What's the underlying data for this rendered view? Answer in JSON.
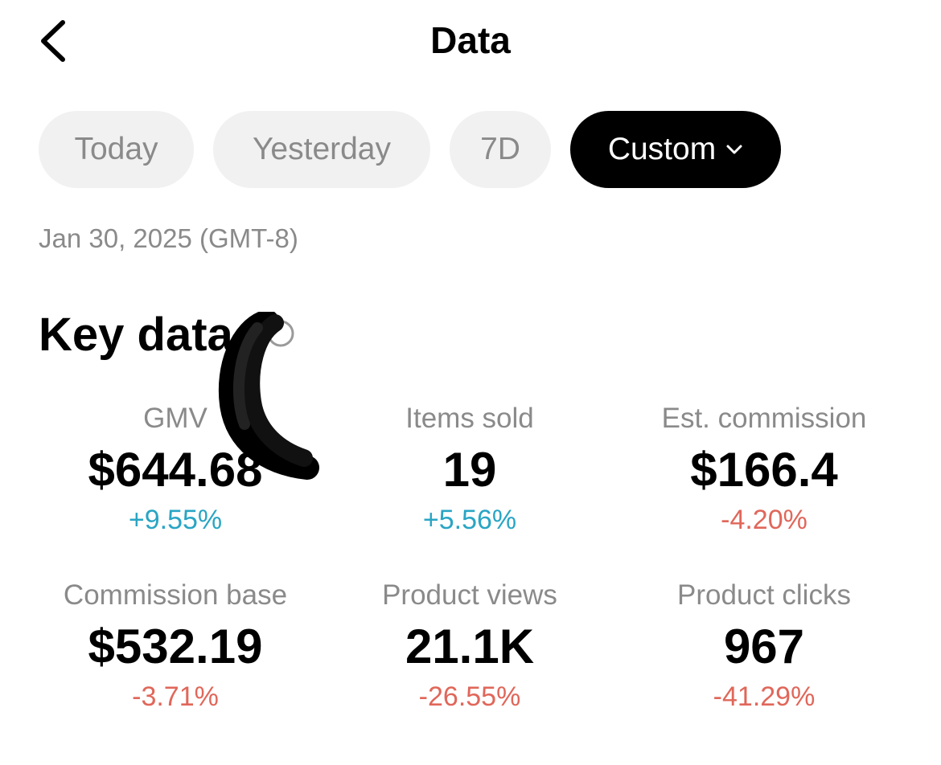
{
  "header": {
    "title": "Data",
    "back_icon": "chevron-left-icon"
  },
  "date_filter": {
    "options": [
      {
        "label": "Today",
        "active": false
      },
      {
        "label": "Yesterday",
        "active": false
      },
      {
        "label": "7D",
        "active": false
      },
      {
        "label": "Custom",
        "active": true,
        "icon": "chevron-down-icon"
      }
    ],
    "date": "Jan 30, 2025 (GMT-8)"
  },
  "key_data": {
    "title": "Key data",
    "info_icon": "info-icon",
    "metrics": [
      {
        "label": "GMV",
        "value": "$644.68",
        "change": "+9.55%",
        "trend": "up"
      },
      {
        "label": "Items sold",
        "value": "19",
        "change": "+5.56%",
        "trend": "up"
      },
      {
        "label": "Est. commission",
        "value": "$166.4",
        "change": "-4.20%",
        "trend": "down"
      },
      {
        "label": "Commission base",
        "value": "$532.19",
        "change": "-3.71%",
        "trend": "down"
      },
      {
        "label": "Product views",
        "value": "21.1K",
        "change": "-26.55%",
        "trend": "down"
      },
      {
        "label": "Product clicks",
        "value": "967",
        "change": "-41.29%",
        "trend": "down"
      }
    ]
  },
  "colors": {
    "positive": "#2aa5c4",
    "negative": "#e0675a",
    "muted": "#8a8a8a",
    "pill_bg": "#f1f1f1",
    "active_pill_bg": "#000000"
  }
}
